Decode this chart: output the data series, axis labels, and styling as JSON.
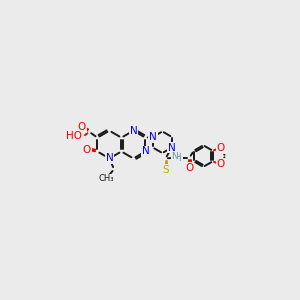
{
  "background_color": "#ebebeb",
  "bond_color": "#1a1a1a",
  "bond_width": 1.4,
  "atom_colors": {
    "N": "#0000ee",
    "O": "#ee0000",
    "S": "#bbaa00",
    "HN": "#5f9ea0",
    "C": "#1a1a1a"
  },
  "font_size": 7.5,
  "fig_width": 3.0,
  "fig_height": 3.0,
  "dpi": 100
}
